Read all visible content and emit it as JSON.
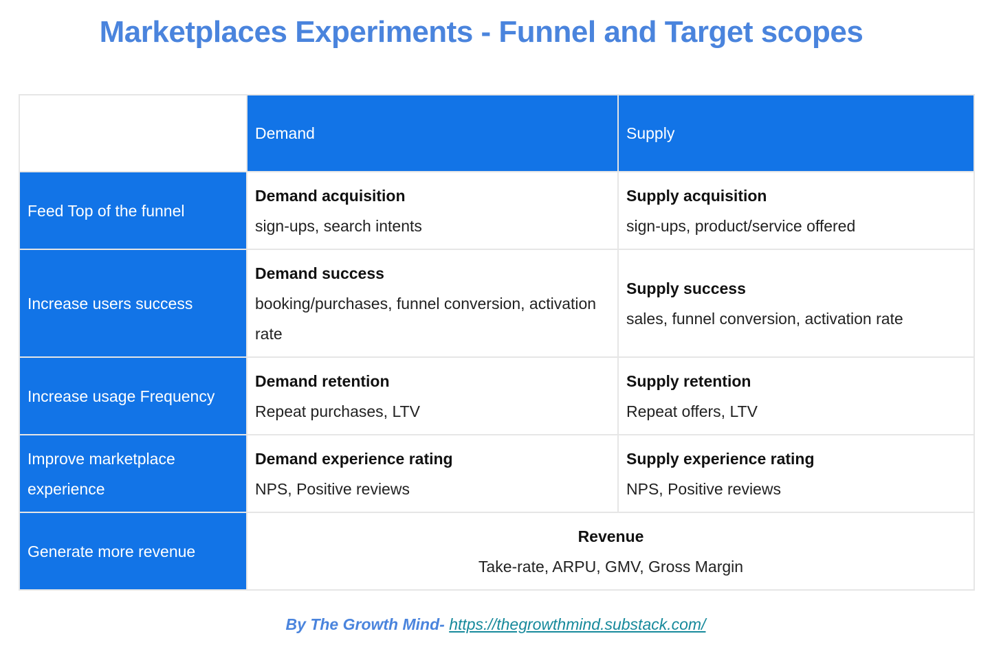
{
  "title": "Marketplaces Experiments - Funnel and Target scopes",
  "columns": [
    "Demand",
    "Supply"
  ],
  "rows": [
    {
      "label": "Feed Top of the funnel",
      "demand": {
        "title": "Demand acquisition",
        "metrics": "sign-ups, search intents"
      },
      "supply": {
        "title": "Supply acquisition",
        "metrics": "sign-ups, product/service offered"
      }
    },
    {
      "label": "Increase users success",
      "demand": {
        "title": "Demand success",
        "metrics": "booking/purchases, funnel conversion, activation rate"
      },
      "supply": {
        "title": "Supply success",
        "metrics": "sales, funnel conversion, activation rate"
      }
    },
    {
      "label": "Increase usage Frequency",
      "demand": {
        "title": "Demand retention",
        "metrics": "Repeat purchases, LTV"
      },
      "supply": {
        "title": "Supply retention",
        "metrics": "Repeat offers, LTV"
      }
    },
    {
      "label": "Improve marketplace experience",
      "demand": {
        "title": "Demand experience rating",
        "metrics": "NPS, Positive reviews"
      },
      "supply": {
        "title": "Supply experience rating",
        "metrics": "NPS, Positive reviews"
      }
    },
    {
      "label": "Generate more revenue",
      "combined": {
        "title": "Revenue",
        "metrics": "Take-rate, ARPU, GMV, Gross Margin"
      }
    }
  ],
  "footer": {
    "byline": "By The Growth Mind-",
    "link": "https://thegrowthmind.substack.com/"
  },
  "colors": {
    "accent": "#1274e7",
    "title": "#4a84dd",
    "link": "#16899b",
    "border": "#e6e6e6"
  }
}
